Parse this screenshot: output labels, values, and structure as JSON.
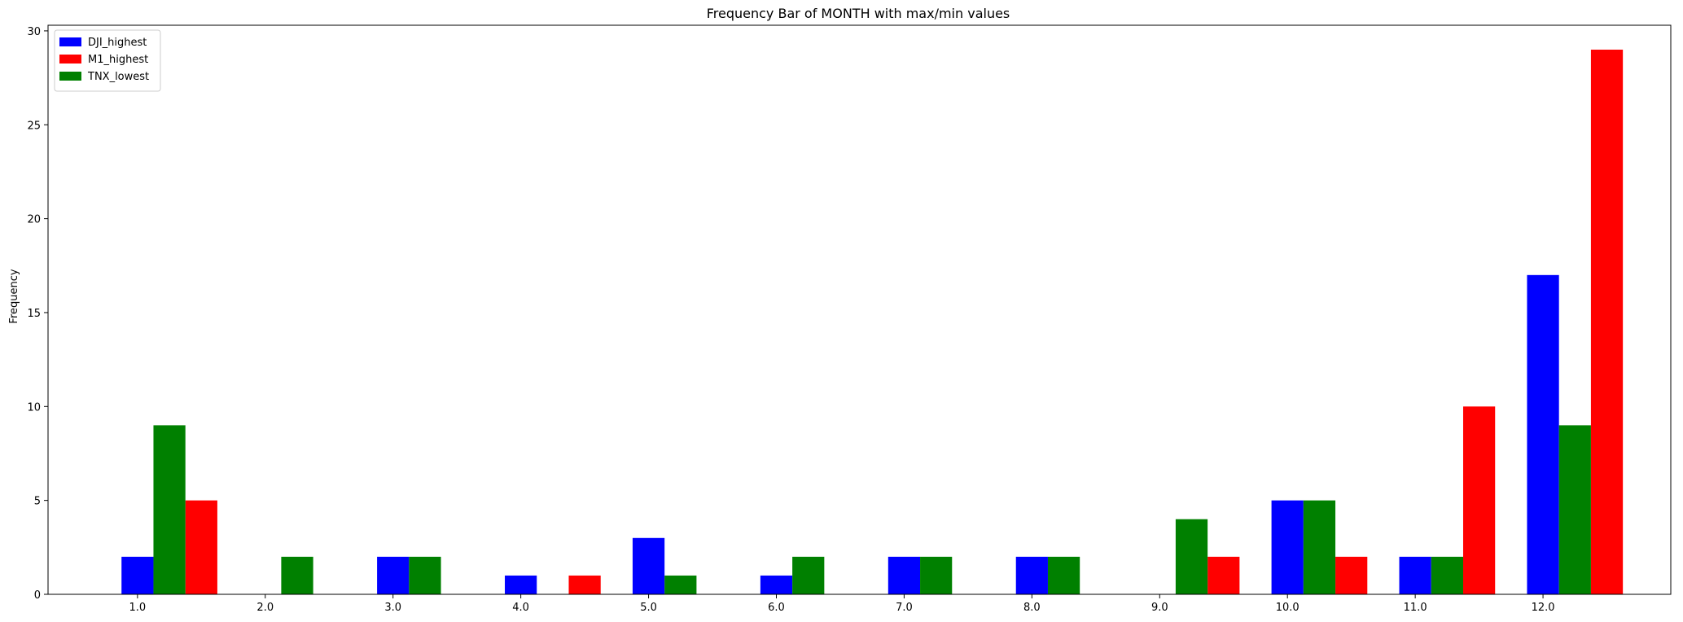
{
  "chart_data": {
    "type": "bar",
    "title": "Frequency Bar of MONTH with max/min values",
    "xlabel": "",
    "ylabel": "Frequency",
    "categories": [
      "1.0",
      "2.0",
      "3.0",
      "4.0",
      "5.0",
      "6.0",
      "7.0",
      "8.0",
      "9.0",
      "10.0",
      "11.0",
      "12.0"
    ],
    "x": [
      1,
      2,
      3,
      4,
      5,
      6,
      7,
      8,
      9,
      10,
      11,
      12
    ],
    "ylim": [
      0,
      30.3
    ],
    "xlim": [
      0.3,
      13.0
    ],
    "yticks": [
      0,
      5,
      10,
      15,
      20,
      25,
      30
    ],
    "bar_width_units": 0.25,
    "grid": false,
    "legend_position": "upper-left",
    "series": [
      {
        "name": "DJI_highest",
        "color": "#0000ff",
        "offset": 0.0,
        "points": [
          {
            "x": 1,
            "y": 2
          },
          {
            "x": 3,
            "y": 2
          },
          {
            "x": 4,
            "y": 1
          },
          {
            "x": 5,
            "y": 3
          },
          {
            "x": 6,
            "y": 1
          },
          {
            "x": 7,
            "y": 2
          },
          {
            "x": 8,
            "y": 2
          },
          {
            "x": 10,
            "y": 5
          },
          {
            "x": 11,
            "y": 2
          },
          {
            "x": 12,
            "y": 17
          }
        ]
      },
      {
        "name": "M1_highest",
        "color": "#ff0000",
        "offset": 0.5,
        "points": [
          {
            "x": 1,
            "y": 5
          },
          {
            "x": 4,
            "y": 1
          },
          {
            "x": 9,
            "y": 2
          },
          {
            "x": 10,
            "y": 2
          },
          {
            "x": 11,
            "y": 10
          },
          {
            "x": 12,
            "y": 29
          }
        ]
      },
      {
        "name": "TNX_lowest",
        "color": "#008000",
        "offset": 0.25,
        "points": [
          {
            "x": 1,
            "y": 9
          },
          {
            "x": 2,
            "y": 2
          },
          {
            "x": 3,
            "y": 2
          },
          {
            "x": 5,
            "y": 1
          },
          {
            "x": 6,
            "y": 2
          },
          {
            "x": 7,
            "y": 2
          },
          {
            "x": 8,
            "y": 2
          },
          {
            "x": 9,
            "y": 4
          },
          {
            "x": 10,
            "y": 5
          },
          {
            "x": 11,
            "y": 2
          },
          {
            "x": 12,
            "y": 9
          }
        ]
      }
    ]
  }
}
